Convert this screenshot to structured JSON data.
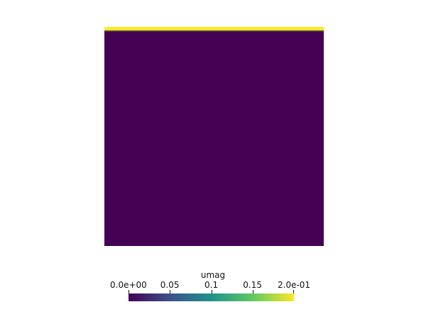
{
  "chart_data": {
    "type": "heatmap",
    "field_name": "umag",
    "range": [
      0.0,
      0.2
    ],
    "colormap": "viridis",
    "colormap_stops": [
      "#440154",
      "#3b528b",
      "#21918c",
      "#5ec962",
      "#fde725"
    ],
    "field_values": {
      "interior": 0.0,
      "top_lid": 0.2
    },
    "ticks": [
      {
        "value": 0.0,
        "label": "0.0e+00"
      },
      {
        "value": 0.05,
        "label": "0.05"
      },
      {
        "value": 0.1,
        "label": "0.1"
      },
      {
        "value": 0.15,
        "label": "0.15"
      },
      {
        "value": 0.2,
        "label": "2.0e-01"
      }
    ],
    "legend_placement": "bottom-center"
  }
}
